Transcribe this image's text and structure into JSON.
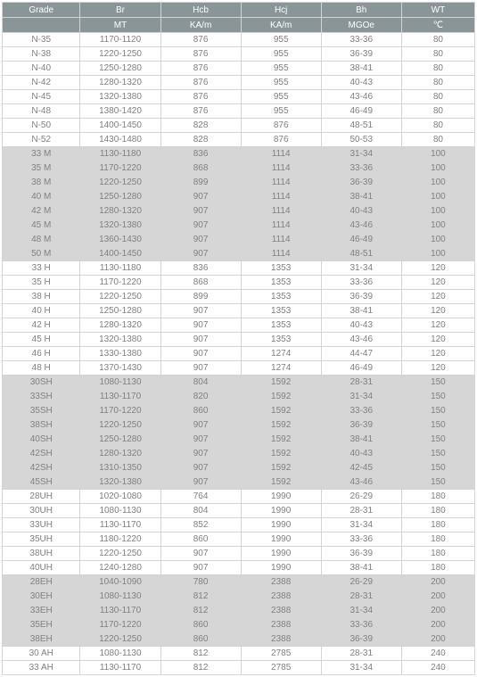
{
  "table": {
    "headerRow1": [
      "Grade",
      "Br",
      "Hcb",
      "Hcj",
      "Bh",
      "WT"
    ],
    "headerRow2": [
      "",
      "MT",
      "KA/m",
      "KA/m",
      "MGOe",
      "℃"
    ],
    "columns_count": 6,
    "font_color": "#808080",
    "header_bg": "#8a9597",
    "header_fg": "#ffffff",
    "row_bg_white": "#ffffff",
    "row_bg_gray": "#d6d6d6",
    "border_color": "#d4d4d4",
    "font_size_pt": 8,
    "rows": [
      {
        "bg": "white",
        "cells": [
          "N-35",
          "1170-1120",
          "876",
          "955",
          "33-36",
          "80"
        ]
      },
      {
        "bg": "white",
        "cells": [
          "N-38",
          "1220-1250",
          "876",
          "955",
          "36-39",
          "80"
        ]
      },
      {
        "bg": "white",
        "cells": [
          "N-40",
          "1250-1280",
          "876",
          "955",
          "38-41",
          "80"
        ]
      },
      {
        "bg": "white",
        "cells": [
          "N-42",
          "1280-1320",
          "876",
          "955",
          "40-43",
          "80"
        ]
      },
      {
        "bg": "white",
        "cells": [
          "N-45",
          "1320-1380",
          "876",
          "955",
          "43-46",
          "80"
        ]
      },
      {
        "bg": "white",
        "cells": [
          "N-48",
          "1380-1420",
          "876",
          "955",
          "46-49",
          "80"
        ]
      },
      {
        "bg": "white",
        "cells": [
          "N-50",
          "1400-1450",
          "828",
          "876",
          "48-51",
          "80"
        ]
      },
      {
        "bg": "white",
        "cells": [
          "N-52",
          "1430-1480",
          "828",
          "876",
          "50-53",
          "80"
        ]
      },
      {
        "bg": "gray",
        "cells": [
          "33 M",
          "1130-1180",
          "836",
          "1114",
          "31-34",
          "100"
        ]
      },
      {
        "bg": "gray",
        "cells": [
          "35 M",
          "1170-1220",
          "868",
          "1114",
          "33-36",
          "100"
        ]
      },
      {
        "bg": "gray",
        "cells": [
          "38 M",
          "1220-1250",
          "899",
          "1114",
          "36-39",
          "100"
        ]
      },
      {
        "bg": "gray",
        "cells": [
          "40 M",
          "1250-1280",
          "907",
          "1114",
          "38-41",
          "100"
        ]
      },
      {
        "bg": "gray",
        "cells": [
          "42 M",
          "1280-1320",
          "907",
          "1114",
          "40-43",
          "100"
        ]
      },
      {
        "bg": "gray",
        "cells": [
          "45 M",
          "1320-1380",
          "907",
          "1114",
          "43-46",
          "100"
        ]
      },
      {
        "bg": "gray",
        "cells": [
          "48 M",
          "1360-1430",
          "907",
          "1114",
          "46-49",
          "100"
        ]
      },
      {
        "bg": "gray",
        "cells": [
          "50 M",
          "1400-1450",
          "907",
          "1114",
          "48-51",
          "100"
        ]
      },
      {
        "bg": "white",
        "cells": [
          "33 H",
          "1130-1180",
          "836",
          "1353",
          "31-34",
          "120"
        ]
      },
      {
        "bg": "white",
        "cells": [
          "35 H",
          "1170-1220",
          "868",
          "1353",
          "33-36",
          "120"
        ]
      },
      {
        "bg": "white",
        "cells": [
          "38 H",
          "1220-1250",
          "899",
          "1353",
          "36-39",
          "120"
        ]
      },
      {
        "bg": "white",
        "cells": [
          "40 H",
          "1250-1280",
          "907",
          "1353",
          "38-41",
          "120"
        ]
      },
      {
        "bg": "white",
        "cells": [
          "42 H",
          "1280-1320",
          "907",
          "1353",
          "40-43",
          "120"
        ]
      },
      {
        "bg": "white",
        "cells": [
          "45 H",
          "1320-1380",
          "907",
          "1353",
          "43-46",
          "120"
        ]
      },
      {
        "bg": "white",
        "cells": [
          "46 H",
          "1330-1380",
          "907",
          "1274",
          "44-47",
          "120"
        ]
      },
      {
        "bg": "white",
        "cells": [
          "48 H",
          "1370-1430",
          "907",
          "1274",
          "46-49",
          "120"
        ]
      },
      {
        "bg": "gray",
        "cells": [
          "30SH",
          "1080-1130",
          "804",
          "1592",
          "28-31",
          "150"
        ]
      },
      {
        "bg": "gray",
        "cells": [
          "33SH",
          "1130-1170",
          "820",
          "1592",
          "31-34",
          "150"
        ]
      },
      {
        "bg": "gray",
        "cells": [
          "35SH",
          "1170-1220",
          "860",
          "1592",
          "33-36",
          "150"
        ]
      },
      {
        "bg": "gray",
        "cells": [
          "38SH",
          "1220-1250",
          "907",
          "1592",
          "36-39",
          "150"
        ]
      },
      {
        "bg": "gray",
        "cells": [
          "40SH",
          "1250-1280",
          "907",
          "1592",
          "38-41",
          "150"
        ]
      },
      {
        "bg": "gray",
        "cells": [
          "42SH",
          "1280-1320",
          "907",
          "1592",
          "40-43",
          "150"
        ]
      },
      {
        "bg": "gray",
        "cells": [
          "42SH",
          "1310-1350",
          "907",
          "1592",
          "42-45",
          "150"
        ]
      },
      {
        "bg": "gray",
        "cells": [
          "45SH",
          "1320-1380",
          "907",
          "1592",
          "43-46",
          "150"
        ]
      },
      {
        "bg": "white",
        "cells": [
          "28UH",
          "1020-1080",
          "764",
          "1990",
          "26-29",
          "180"
        ]
      },
      {
        "bg": "white",
        "cells": [
          "30UH",
          "1080-1130",
          "804",
          "1990",
          "28-31",
          "180"
        ]
      },
      {
        "bg": "white",
        "cells": [
          "33UH",
          "1130-1170",
          "852",
          "1990",
          "31-34",
          "180"
        ]
      },
      {
        "bg": "white",
        "cells": [
          "35UH",
          "1180-1220",
          "860",
          "1990",
          "33-36",
          "180"
        ]
      },
      {
        "bg": "white",
        "cells": [
          "38UH",
          "1220-1250",
          "907",
          "1990",
          "36-39",
          "180"
        ]
      },
      {
        "bg": "white",
        "cells": [
          "40UH",
          "1240-1280",
          "907",
          "1990",
          "38-41",
          "180"
        ]
      },
      {
        "bg": "gray",
        "cells": [
          "28EH",
          "1040-1090",
          "780",
          "2388",
          "26-29",
          "200"
        ]
      },
      {
        "bg": "gray",
        "cells": [
          "30EH",
          "1080-1130",
          "812",
          "2388",
          "28-31",
          "200"
        ]
      },
      {
        "bg": "gray",
        "cells": [
          "33EH",
          "1130-1170",
          "812",
          "2388",
          "31-34",
          "200"
        ]
      },
      {
        "bg": "gray",
        "cells": [
          "35EH",
          "1170-1220",
          "860",
          "2388",
          "33-36",
          "200"
        ]
      },
      {
        "bg": "gray",
        "cells": [
          "38EH",
          "1220-1250",
          "860",
          "2388",
          "36-39",
          "200"
        ]
      },
      {
        "bg": "white",
        "cells": [
          "30 AH",
          "1080-1130",
          "812",
          "2785",
          "28-31",
          "240"
        ]
      },
      {
        "bg": "white",
        "cells": [
          "33 AH",
          "1130-1170",
          "812",
          "2785",
          "31-34",
          "240"
        ]
      }
    ]
  }
}
